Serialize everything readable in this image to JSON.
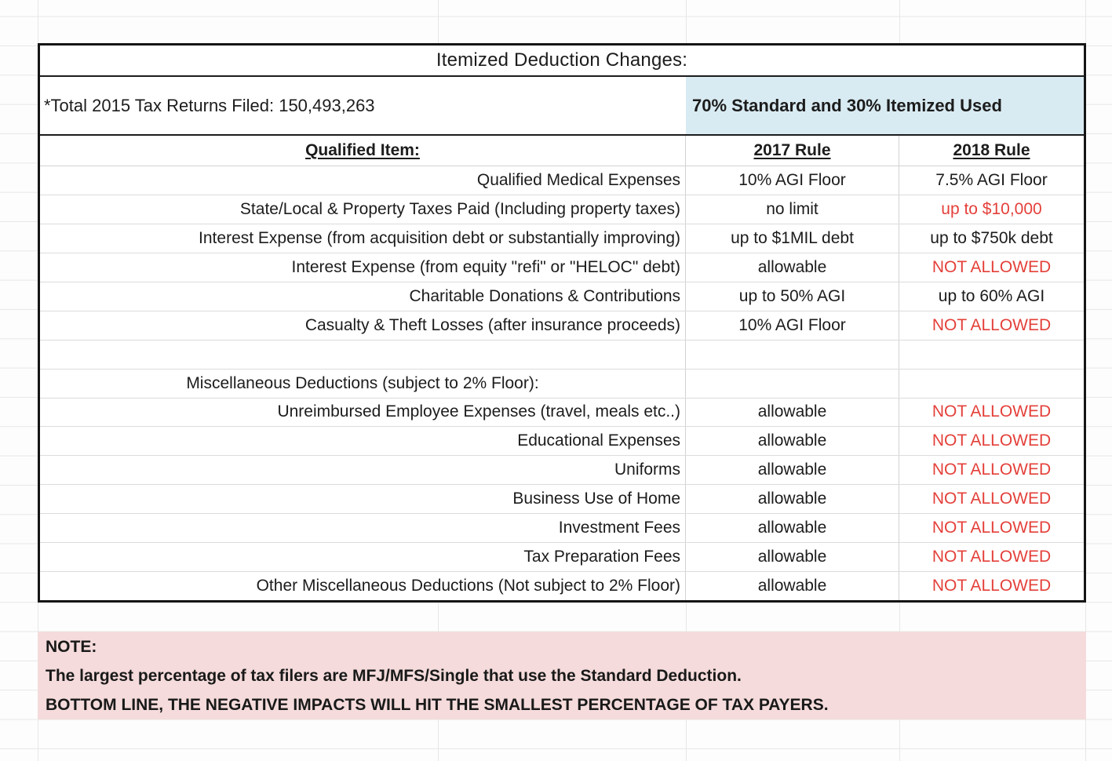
{
  "page": {
    "title": "Itemized Deduction Changes:"
  },
  "summary": {
    "filed": "*Total 2015 Tax Returns Filed: 150,493,263",
    "usage": "70% Standard and 30% Itemized Used"
  },
  "table": {
    "headers": {
      "item": "Qualified Item:",
      "rule_2017": "2017 Rule",
      "rule_2018": "2018 Rule"
    },
    "rows": [
      {
        "item": "Qualified Medical Expenses",
        "rule_2017": "10% AGI Floor",
        "rule_2018": "7.5% AGI Floor"
      },
      {
        "item": "State/Local & Property Taxes Paid (Including property taxes)",
        "rule_2017": "no limit",
        "rule_2018": "up to $10,000"
      },
      {
        "item": "Interest Expense (from acquisition debt or substantially improving)",
        "rule_2017": "up to $1MIL debt",
        "rule_2018": "up to $750k debt"
      },
      {
        "item": "Interest Expense (from equity \"refi\" or \"HELOC\" debt)",
        "rule_2017": "allowable",
        "rule_2018": "NOT ALLOWED"
      },
      {
        "item": "Charitable Donations & Contributions",
        "rule_2017": "up to 50% AGI",
        "rule_2018": "up to 60% AGI"
      },
      {
        "item": "Casualty & Theft Losses (after insurance proceeds)",
        "rule_2017": "10% AGI Floor",
        "rule_2018": "NOT ALLOWED"
      },
      {
        "item": "",
        "rule_2017": "",
        "rule_2018": ""
      },
      {
        "item": "Miscellaneous Deductions (subject to 2% Floor):",
        "rule_2017": "",
        "rule_2018": ""
      },
      {
        "item": "Unreimbursed Employee Expenses (travel, meals etc..)",
        "rule_2017": "allowable",
        "rule_2018": "NOT ALLOWED"
      },
      {
        "item": "Educational Expenses",
        "rule_2017": "allowable",
        "rule_2018": "NOT ALLOWED"
      },
      {
        "item": "Uniforms",
        "rule_2017": "allowable",
        "rule_2018": "NOT ALLOWED"
      },
      {
        "item": "Business Use of Home",
        "rule_2017": "allowable",
        "rule_2018": "NOT ALLOWED"
      },
      {
        "item": "Investment Fees",
        "rule_2017": "allowable",
        "rule_2018": "NOT ALLOWED"
      },
      {
        "item": "Tax Preparation Fees",
        "rule_2017": "allowable",
        "rule_2018": "NOT ALLOWED"
      },
      {
        "item": "Other Miscellaneous Deductions (Not subject to 2% Floor)",
        "rule_2017": "allowable",
        "rule_2018": "NOT ALLOWED"
      }
    ]
  },
  "note": {
    "heading": "NOTE:",
    "line1": "The largest percentage of tax filers are MFJ/MFS/Single that use the Standard Deduction.",
    "line2": "BOTTOM LINE, THE NEGATIVE IMPACTS WILL HIT THE SMALLEST PERCENTAGE OF TAX PAYERS."
  },
  "colors": {
    "highlight_blue": "#D9EBF2",
    "note_pink": "#F5DBDB",
    "alert_red": "#E4403A"
  }
}
